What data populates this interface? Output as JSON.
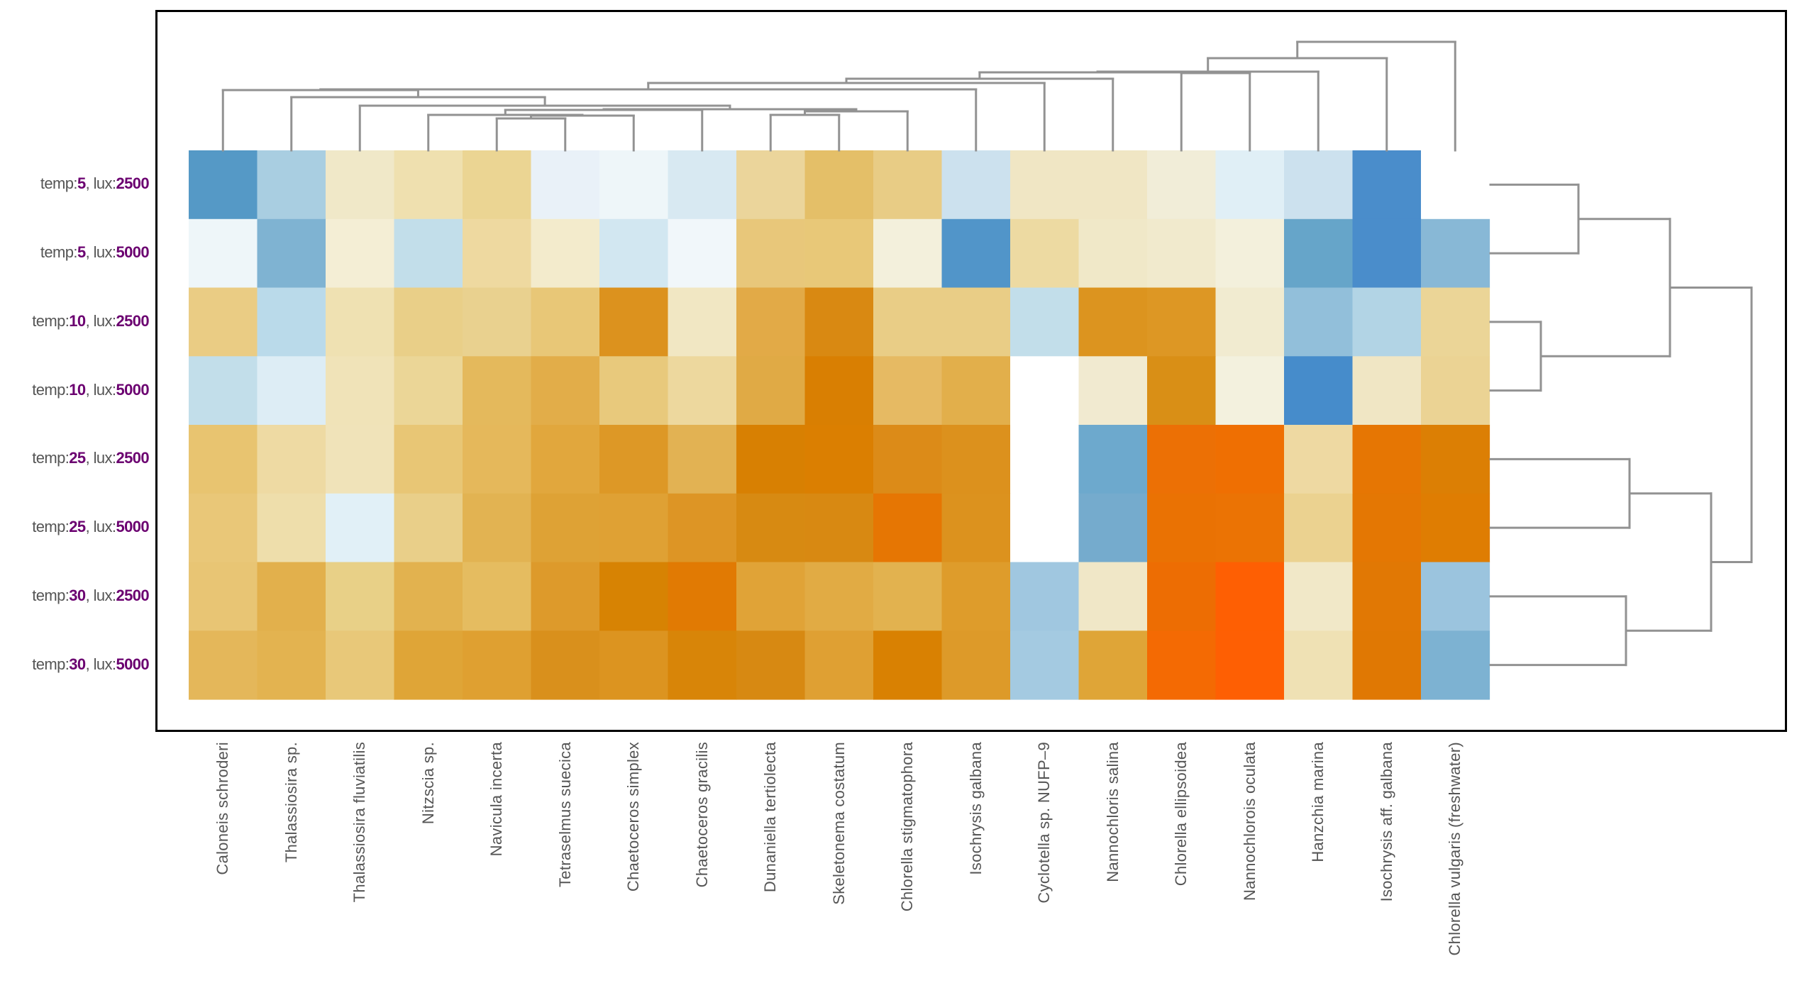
{
  "chart_data": {
    "type": "heatmap",
    "title": "",
    "xlabel": "",
    "ylabel": "",
    "legend": "none",
    "rows": [
      {
        "label_prefix": "temp:",
        "temp": "5",
        "label_mid": ", lux:",
        "lux": "2500"
      },
      {
        "label_prefix": "temp:",
        "temp": "5",
        "label_mid": ", lux:",
        "lux": "5000"
      },
      {
        "label_prefix": "temp:",
        "temp": "10",
        "label_mid": ", lux:",
        "lux": "2500"
      },
      {
        "label_prefix": "temp:",
        "temp": "10",
        "label_mid": ", lux:",
        "lux": "5000"
      },
      {
        "label_prefix": "temp:",
        "temp": "25",
        "label_mid": ", lux:",
        "lux": "2500"
      },
      {
        "label_prefix": "temp:",
        "temp": "25",
        "label_mid": ", lux:",
        "lux": "5000"
      },
      {
        "label_prefix": "temp:",
        "temp": "30",
        "label_mid": ", lux:",
        "lux": "2500"
      },
      {
        "label_prefix": "temp:",
        "temp": "30",
        "label_mid": ", lux:",
        "lux": "5000"
      }
    ],
    "columns": [
      "Caloneis schroderi",
      "Thalassiosira sp.",
      "Thalassiosira fluviatilis",
      "Nitzscia sp.",
      "Navicula incerta",
      "Tetraselmus suecica",
      "Chaetoceros simplex",
      "Chaetoceros gracilis",
      "Dunaniella tertiolecta",
      "Skeletonema costatum",
      "Chlorella stigmatophora",
      "Isochrysis galbana",
      "Cyclotella sp. NUFP–9",
      "Nannochloris salina",
      "Chlorella ellipsoidea",
      "Nannochlorois oculata",
      "Hanzchia marina",
      "Isochrysis aff. galbana",
      "Chlorella vulgaris (freshwater)"
    ],
    "colorscale": {
      "low": "#4a8dcb",
      "mid": "#f3f0dc",
      "high": "#fe5f03",
      "na": "#ffffff"
    },
    "cell_colors": [
      [
        "#5599c6",
        "#a9cee1",
        "#f0e8c8",
        "#efe0af",
        "#ebd593",
        "#e9f1f8",
        "#eef6f9",
        "#d8e9f2",
        "#ebd59b",
        "#e4bf68",
        "#e8cc85",
        "#cce1ee",
        "#f0e6c4",
        "#f0e6c4",
        "#f1edd8",
        "#e0eff6",
        "#cce1ee",
        "#4a8dcb",
        null
      ],
      [
        "#eef6f9",
        "#7fb3d2",
        "#f4eed5",
        "#c2deea",
        "#eed9a0",
        "#f3ebcc",
        "#d2e7f1",
        "#f1f7fa",
        "#e8c77a",
        "#e8c878",
        "#f3f0dc",
        "#5195c9",
        "#eddaa2",
        "#f0e8c8",
        "#f1eacd",
        "#f3f0dc",
        "#66a5c9",
        "#4a8dcb",
        "#88b8d6"
      ],
      [
        "#eacc84",
        "#badaea",
        "#efe1b2",
        "#e9cf88",
        "#e9d18f",
        "#e8c777",
        "#dc921e",
        "#f1e7c3",
        "#e2aa47",
        "#d98912",
        "#e9cd86",
        "#e9cd86",
        "#c2deea",
        "#dc941f",
        "#dd9724",
        "#f1ebd0",
        "#92bfda",
        "#b2d4e5",
        "#ebd597"
      ],
      [
        "#c2deea",
        "#ddedf5",
        "#f0e3b8",
        "#ebd697",
        "#e4b95c",
        "#e2ad49",
        "#e8c97c",
        "#edd89e",
        "#e0aa45",
        "#d97f02",
        "#e6ba63",
        "#e2af4b",
        null,
        "#f1ead0",
        "#d98f16",
        "#f3f1de",
        "#468ccb",
        "#f0e6c4",
        "#ebd394"
      ],
      [
        "#e8c470",
        "#eedaa3",
        "#f0e3b9",
        "#e8c675",
        "#e5b85b",
        "#e1a73d",
        "#dd9826",
        "#e2b253",
        "#d88002",
        "#db7f01",
        "#dc8b18",
        "#dc911d",
        null,
        "#6da9cd",
        "#ec7005",
        "#ef6f02",
        "#eed9a2",
        "#e67603",
        "#dc7f04"
      ],
      [
        "#e9c778",
        "#eedeab",
        "#e1f0f7",
        "#e9cf89",
        "#e2b352",
        "#dea235",
        "#dfa134",
        "#dd9525",
        "#d78a12",
        "#d88912",
        "#e67603",
        "#dc921e",
        null,
        "#75abcd",
        "#ea7203",
        "#eb7304",
        "#ebd290",
        "#e47703",
        "#df7d02"
      ],
      [
        "#e8c574",
        "#e2b04c",
        "#e8d087",
        "#e2b24f",
        "#e5bc60",
        "#dd9a2b",
        "#d78303",
        "#e17a03",
        "#e0a337",
        "#e1ab44",
        "#e2b24f",
        "#de9c2b",
        "#a0c7e0",
        "#f0e7c7",
        "#ed6d03",
        "#fe5f03",
        "#f1e8c8",
        "#e17804",
        "#9bc4de"
      ],
      [
        "#e4b75a",
        "#e3b350",
        "#e8c879",
        "#dfa537",
        "#dfa031",
        "#d9901c",
        "#dc9420",
        "#d88508",
        "#d78912",
        "#dfa033",
        "#d98102",
        "#dd9a29",
        "#a4cae1",
        "#dfa537",
        "#f46a03",
        "#fe5f03",
        "#efe1b4",
        "#e07803",
        "#7db2d2"
      ]
    ],
    "column_dendrogram": {
      "note": "merge order (children are column indices or earlier merge ids)",
      "merges": [
        {
          "id": "m1",
          "children": [
            4,
            5
          ]
        },
        {
          "id": "m2",
          "children": [
            "m1",
            6
          ]
        },
        {
          "id": "m3",
          "children": [
            3,
            "m2"
          ]
        },
        {
          "id": "m4",
          "children": [
            8,
            9
          ]
        },
        {
          "id": "m5",
          "children": [
            "m4",
            10
          ]
        },
        {
          "id": "m6",
          "children": [
            "m3",
            7
          ]
        },
        {
          "id": "m7",
          "children": [
            "m6",
            "m5"
          ]
        },
        {
          "id": "m8",
          "children": [
            2,
            "m7"
          ]
        },
        {
          "id": "m9",
          "children": [
            1,
            "m8"
          ]
        },
        {
          "id": "m10",
          "children": [
            0,
            "m9"
          ]
        },
        {
          "id": "m11",
          "children": [
            "m10",
            11
          ]
        },
        {
          "id": "m12",
          "children": [
            "m11",
            12
          ]
        },
        {
          "id": "m13",
          "children": [
            "m12",
            13
          ]
        },
        {
          "id": "m14",
          "children": [
            14,
            15
          ]
        },
        {
          "id": "m15",
          "children": [
            "m13",
            "m14"
          ]
        },
        {
          "id": "m16",
          "children": [
            "m15",
            16
          ]
        },
        {
          "id": "m17",
          "children": [
            "m16",
            17
          ]
        },
        {
          "id": "m18",
          "children": [
            "m17",
            18
          ]
        }
      ]
    },
    "row_dendrogram": {
      "merges": [
        {
          "id": "r1",
          "children": [
            0,
            1
          ]
        },
        {
          "id": "r2",
          "children": [
            2,
            3
          ]
        },
        {
          "id": "r3",
          "children": [
            "r1",
            "r2"
          ]
        },
        {
          "id": "r4",
          "children": [
            4,
            5
          ]
        },
        {
          "id": "r5",
          "children": [
            6,
            7
          ]
        },
        {
          "id": "r6",
          "children": [
            "r4",
            "r5"
          ]
        },
        {
          "id": "r7",
          "children": [
            "r3",
            "r6"
          ]
        }
      ]
    },
    "colors": {
      "dendrogram_line": "#929292",
      "label_text": "#555555",
      "label_value": "#6b0070",
      "frame": "#000000"
    }
  }
}
